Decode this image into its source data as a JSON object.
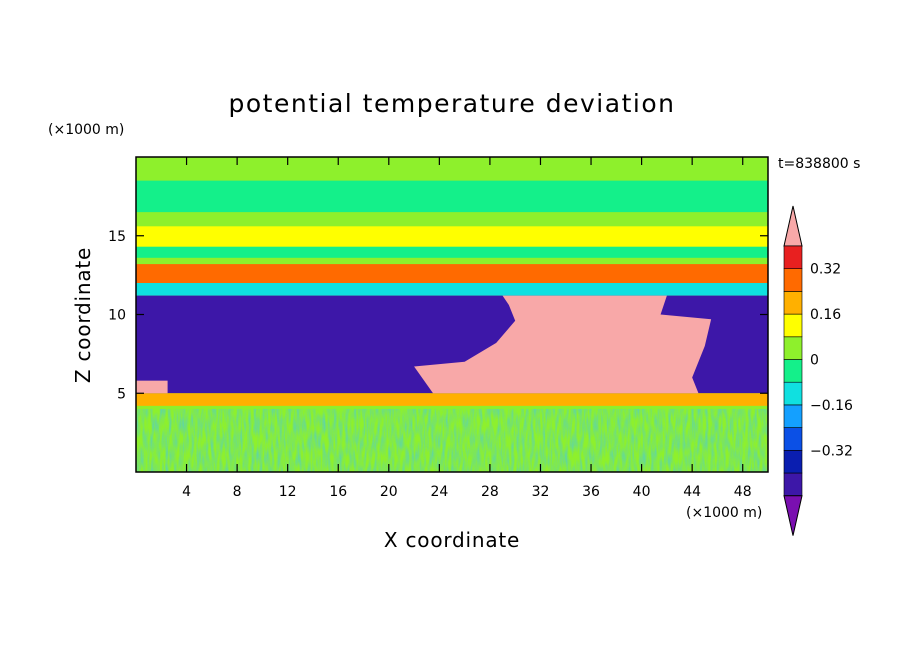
{
  "chart_data": {
    "type": "heatmap",
    "title": "potential temperature deviation",
    "time_label": "t=838800 s",
    "xlabel": "X coordinate",
    "ylabel": "Z coordinate",
    "x_units": "(×1000 m)",
    "y_units": "(×1000 m)",
    "xlim": [
      0,
      50
    ],
    "ylim": [
      0,
      20
    ],
    "x_ticks": [
      "4",
      "8",
      "12",
      "16",
      "20",
      "24",
      "28",
      "32",
      "36",
      "40",
      "44",
      "48"
    ],
    "x_tick_values": [
      4,
      8,
      12,
      16,
      20,
      24,
      28,
      32,
      36,
      40,
      44,
      48
    ],
    "y_ticks": [
      "5",
      "10",
      "15"
    ],
    "y_tick_values": [
      5,
      10,
      15
    ],
    "colorbar": {
      "levels": [
        -0.48,
        -0.4,
        -0.32,
        -0.24,
        -0.16,
        -0.08,
        0,
        0.08,
        0.16,
        0.24,
        0.32,
        0.4
      ],
      "colors": [
        "#7a0fb0",
        "#3d17a8",
        "#0a1eb0",
        "#0b50e6",
        "#14a0ff",
        "#10e0e0",
        "#14f08a",
        "#8ef02c",
        "#ffff00",
        "#ffb000",
        "#ff6a00",
        "#e82020",
        "#f8a8a8"
      ],
      "tick_labels": [
        "0.32",
        "0.16",
        "0",
        "−0.16",
        "−0.32"
      ],
      "tick_values": [
        0.32,
        0.16,
        0,
        -0.16,
        -0.32
      ]
    },
    "layers": [
      {
        "z": [
          18.5,
          20.0
        ],
        "value": 0.05
      },
      {
        "z": [
          16.5,
          18.5
        ],
        "value": -0.02
      },
      {
        "z": [
          14.3,
          15.6
        ],
        "value": 0.1
      },
      {
        "z": [
          13.6,
          14.3
        ],
        "value": -0.05
      },
      {
        "z": [
          12.0,
          13.2
        ],
        "value": 0.3
      },
      {
        "z": [
          11.2,
          12.0
        ],
        "value": -0.12
      },
      {
        "z": [
          8.0,
          11.2
        ],
        "value": -0.45
      },
      {
        "z": [
          5.0,
          8.0
        ],
        "value": -0.45
      },
      {
        "z": [
          4.2,
          5.0
        ],
        "value": 0.2
      },
      {
        "z": [
          0.0,
          4.0
        ],
        "value": 0.05
      }
    ],
    "warm_anomaly_region": {
      "x": [
        22,
        48
      ],
      "z": [
        5.0,
        11.2
      ],
      "value": 0.45
    }
  }
}
